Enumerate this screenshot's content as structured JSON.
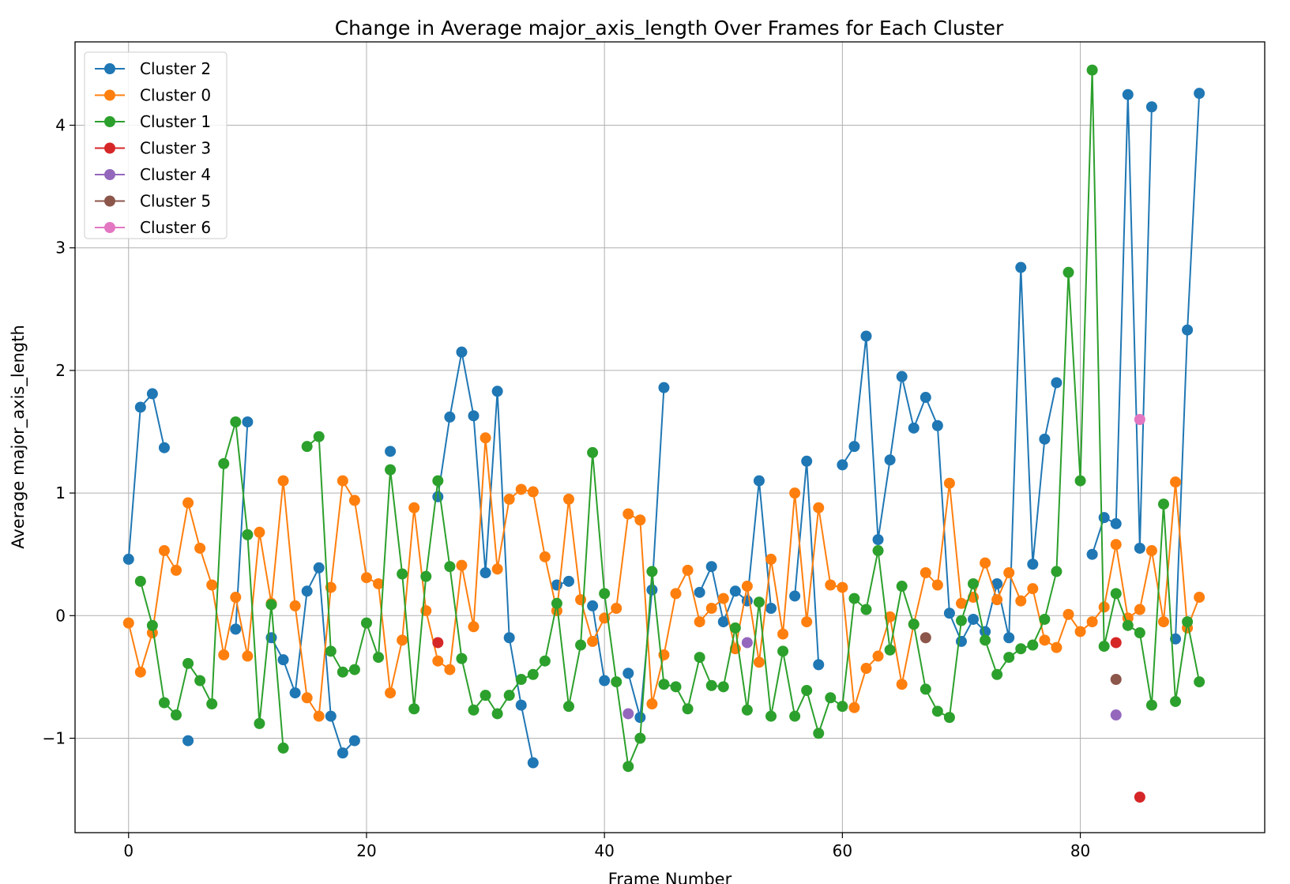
{
  "chart_data": {
    "type": "line",
    "title": "Change in Average major_axis_length Over Frames for Each Cluster",
    "xlabel": "Frame Number",
    "ylabel": "Average major_axis_length",
    "xlim": [
      -4.5,
      95.5
    ],
    "ylim": [
      -1.77,
      4.68
    ],
    "xticks": [
      0,
      20,
      40,
      60,
      80
    ],
    "yticks": [
      -1,
      0,
      1,
      2,
      3,
      4
    ],
    "ytick_labels": [
      "−1",
      "0",
      "1",
      "2",
      "3",
      "4"
    ],
    "grid": true,
    "legend_position": "top-left",
    "series": [
      {
        "name": "Cluster 2",
        "color": "#1f77b4",
        "points": [
          [
            0,
            0.46
          ],
          [
            1,
            1.7
          ],
          [
            2,
            1.81
          ],
          [
            3,
            1.37
          ],
          null,
          [
            5,
            -1.02
          ],
          null,
          [
            9,
            -0.11
          ],
          [
            10,
            1.58
          ],
          null,
          [
            12,
            -0.18
          ],
          [
            13,
            -0.36
          ],
          [
            14,
            -0.63
          ],
          [
            15,
            0.2
          ],
          [
            16,
            0.39
          ],
          [
            17,
            -0.82
          ],
          [
            18,
            -1.12
          ],
          [
            19,
            -1.02
          ],
          null,
          [
            22,
            1.34
          ],
          null,
          [
            26,
            0.97
          ],
          [
            27,
            1.62
          ],
          [
            28,
            2.15
          ],
          [
            29,
            1.63
          ],
          [
            30,
            0.35
          ],
          [
            31,
            1.83
          ],
          [
            32,
            -0.18
          ],
          [
            33,
            -0.73
          ],
          [
            34,
            -1.2
          ],
          null,
          [
            36,
            0.25
          ],
          [
            37,
            0.28
          ],
          null,
          [
            39,
            0.08
          ],
          [
            40,
            -0.53
          ],
          null,
          [
            42,
            -0.47
          ],
          [
            43,
            -0.83
          ],
          [
            44,
            0.21
          ],
          [
            45,
            1.86
          ],
          null,
          [
            48,
            0.19
          ],
          [
            49,
            0.4
          ],
          [
            50,
            -0.05
          ],
          [
            51,
            0.2
          ],
          [
            52,
            0.12
          ],
          [
            53,
            1.1
          ],
          [
            54,
            0.06
          ],
          null,
          [
            56,
            0.16
          ],
          [
            57,
            1.26
          ],
          [
            58,
            -0.4
          ],
          null,
          [
            60,
            1.23
          ],
          [
            61,
            1.38
          ],
          [
            62,
            2.28
          ],
          [
            63,
            0.62
          ],
          [
            64,
            1.27
          ],
          [
            65,
            1.95
          ],
          [
            66,
            1.53
          ],
          [
            67,
            1.78
          ],
          [
            68,
            1.55
          ],
          [
            69,
            0.02
          ],
          [
            70,
            -0.21
          ],
          [
            71,
            -0.03
          ],
          [
            72,
            -0.13
          ],
          [
            73,
            0.26
          ],
          [
            74,
            -0.18
          ],
          [
            75,
            2.84
          ],
          [
            76,
            0.42
          ],
          [
            77,
            1.44
          ],
          [
            78,
            1.9
          ],
          null,
          [
            81,
            0.5
          ],
          [
            82,
            0.8
          ],
          [
            83,
            0.75
          ],
          [
            84,
            4.25
          ],
          [
            85,
            0.55
          ],
          [
            86,
            4.15
          ],
          null,
          [
            88,
            -0.19
          ],
          [
            89,
            2.33
          ],
          [
            90,
            4.26
          ]
        ]
      },
      {
        "name": "Cluster 0",
        "color": "#ff7f0e",
        "points": [
          [
            0,
            -0.06
          ],
          [
            1,
            -0.46
          ],
          [
            2,
            -0.14
          ],
          [
            3,
            0.53
          ],
          [
            4,
            0.37
          ],
          [
            5,
            0.92
          ],
          [
            6,
            0.55
          ],
          [
            7,
            0.25
          ],
          [
            8,
            -0.32
          ],
          [
            9,
            0.15
          ],
          [
            10,
            -0.33
          ],
          [
            11,
            0.68
          ],
          [
            12,
            0.1
          ],
          [
            13,
            1.1
          ],
          [
            14,
            0.08
          ],
          [
            15,
            -0.67
          ],
          [
            16,
            -0.82
          ],
          [
            17,
            0.23
          ],
          [
            18,
            1.1
          ],
          [
            19,
            0.94
          ],
          [
            20,
            0.31
          ],
          [
            21,
            0.26
          ],
          [
            22,
            -0.63
          ],
          [
            23,
            -0.2
          ],
          [
            24,
            0.88
          ],
          [
            25,
            0.04
          ],
          [
            26,
            -0.37
          ],
          [
            27,
            -0.44
          ],
          [
            28,
            0.41
          ],
          [
            29,
            -0.09
          ],
          [
            30,
            1.45
          ],
          [
            31,
            0.38
          ],
          [
            32,
            0.95
          ],
          [
            33,
            1.03
          ],
          [
            34,
            1.01
          ],
          [
            35,
            0.48
          ],
          [
            36,
            0.04
          ],
          [
            37,
            0.95
          ],
          [
            38,
            0.13
          ],
          [
            39,
            -0.21
          ],
          [
            40,
            -0.02
          ],
          [
            41,
            0.06
          ],
          [
            42,
            0.83
          ],
          [
            43,
            0.78
          ],
          [
            44,
            -0.72
          ],
          [
            45,
            -0.32
          ],
          [
            46,
            0.18
          ],
          [
            47,
            0.37
          ],
          [
            48,
            -0.05
          ],
          [
            49,
            0.06
          ],
          [
            50,
            0.14
          ],
          [
            51,
            -0.27
          ],
          [
            52,
            0.24
          ],
          [
            53,
            -0.38
          ],
          [
            54,
            0.46
          ],
          [
            55,
            -0.15
          ],
          [
            56,
            1.0
          ],
          [
            57,
            -0.05
          ],
          [
            58,
            0.88
          ],
          [
            59,
            0.25
          ],
          [
            60,
            0.23
          ],
          [
            61,
            -0.75
          ],
          [
            62,
            -0.43
          ],
          [
            63,
            -0.33
          ],
          [
            64,
            -0.01
          ],
          [
            65,
            -0.56
          ],
          [
            66,
            -0.07
          ],
          [
            67,
            0.35
          ],
          [
            68,
            0.25
          ],
          [
            69,
            1.08
          ],
          [
            70,
            0.1
          ],
          [
            71,
            0.15
          ],
          [
            72,
            0.43
          ],
          [
            73,
            0.13
          ],
          [
            74,
            0.35
          ],
          [
            75,
            0.12
          ],
          [
            76,
            0.22
          ],
          [
            77,
            -0.2
          ],
          [
            78,
            -0.26
          ],
          [
            79,
            0.01
          ],
          [
            80,
            -0.13
          ],
          [
            81,
            -0.05
          ],
          [
            82,
            0.07
          ],
          [
            83,
            0.58
          ],
          [
            84,
            -0.02
          ],
          [
            85,
            0.05
          ],
          [
            86,
            0.53
          ],
          [
            87,
            -0.05
          ],
          [
            88,
            1.09
          ],
          [
            89,
            -0.1
          ],
          [
            90,
            0.15
          ]
        ]
      },
      {
        "name": "Cluster 1",
        "color": "#2ca02c",
        "points": [
          [
            1,
            0.28
          ],
          [
            2,
            -0.08
          ],
          [
            3,
            -0.71
          ],
          [
            4,
            -0.81
          ],
          [
            5,
            -0.39
          ],
          [
            6,
            -0.53
          ],
          [
            7,
            -0.72
          ],
          [
            8,
            1.24
          ],
          [
            9,
            1.58
          ],
          [
            10,
            0.66
          ],
          [
            11,
            -0.88
          ],
          [
            12,
            0.09
          ],
          [
            13,
            -1.08
          ],
          null,
          [
            15,
            1.38
          ],
          [
            16,
            1.46
          ],
          [
            17,
            -0.29
          ],
          [
            18,
            -0.46
          ],
          [
            19,
            -0.44
          ],
          [
            20,
            -0.06
          ],
          [
            21,
            -0.34
          ],
          [
            22,
            1.19
          ],
          [
            23,
            0.34
          ],
          [
            24,
            -0.76
          ],
          [
            25,
            0.32
          ],
          [
            26,
            1.1
          ],
          [
            27,
            0.4
          ],
          [
            28,
            -0.35
          ],
          [
            29,
            -0.77
          ],
          [
            30,
            -0.65
          ],
          [
            31,
            -0.8
          ],
          [
            32,
            -0.65
          ],
          [
            33,
            -0.52
          ],
          [
            34,
            -0.48
          ],
          [
            35,
            -0.37
          ],
          [
            36,
            0.1
          ],
          [
            37,
            -0.74
          ],
          [
            38,
            -0.24
          ],
          [
            39,
            1.33
          ],
          [
            40,
            0.18
          ],
          [
            41,
            -0.54
          ],
          [
            42,
            -1.23
          ],
          [
            43,
            -1.0
          ],
          [
            44,
            0.36
          ],
          [
            45,
            -0.56
          ],
          [
            46,
            -0.58
          ],
          [
            47,
            -0.76
          ],
          [
            48,
            -0.34
          ],
          [
            49,
            -0.57
          ],
          [
            50,
            -0.58
          ],
          [
            51,
            -0.1
          ],
          [
            52,
            -0.77
          ],
          [
            53,
            0.11
          ],
          [
            54,
            -0.82
          ],
          [
            55,
            -0.29
          ],
          [
            56,
            -0.82
          ],
          [
            57,
            -0.61
          ],
          [
            58,
            -0.96
          ],
          [
            59,
            -0.67
          ],
          [
            60,
            -0.74
          ],
          [
            61,
            0.14
          ],
          [
            62,
            0.05
          ],
          [
            63,
            0.53
          ],
          [
            64,
            -0.28
          ],
          [
            65,
            0.24
          ],
          [
            66,
            -0.07
          ],
          [
            67,
            -0.6
          ],
          [
            68,
            -0.78
          ],
          [
            69,
            -0.83
          ],
          [
            70,
            -0.04
          ],
          [
            71,
            0.26
          ],
          [
            72,
            -0.2
          ],
          [
            73,
            -0.48
          ],
          [
            74,
            -0.34
          ],
          [
            75,
            -0.27
          ],
          [
            76,
            -0.24
          ],
          [
            77,
            -0.03
          ],
          [
            78,
            0.36
          ],
          [
            79,
            2.8
          ],
          [
            80,
            1.1
          ],
          [
            81,
            4.45
          ],
          [
            82,
            -0.25
          ],
          [
            83,
            0.18
          ],
          [
            84,
            -0.08
          ],
          [
            85,
            -0.14
          ],
          [
            86,
            -0.73
          ],
          [
            87,
            0.91
          ],
          [
            88,
            -0.7
          ],
          [
            89,
            -0.05
          ],
          [
            90,
            -0.54
          ]
        ]
      },
      {
        "name": "Cluster 3",
        "color": "#d62728",
        "points": [
          [
            26,
            -0.22
          ],
          null,
          [
            83,
            -0.22
          ],
          null,
          [
            85,
            -1.48
          ]
        ]
      },
      {
        "name": "Cluster 4",
        "color": "#9467bd",
        "points": [
          [
            42,
            -0.8
          ],
          null,
          [
            52,
            -0.22
          ],
          null,
          [
            83,
            -0.81
          ]
        ]
      },
      {
        "name": "Cluster 5",
        "color": "#8c564b",
        "points": [
          [
            67,
            -0.18
          ],
          null,
          [
            83,
            -0.52
          ]
        ]
      },
      {
        "name": "Cluster 6",
        "color": "#e377c2",
        "points": [
          [
            85,
            1.6
          ]
        ]
      }
    ]
  }
}
